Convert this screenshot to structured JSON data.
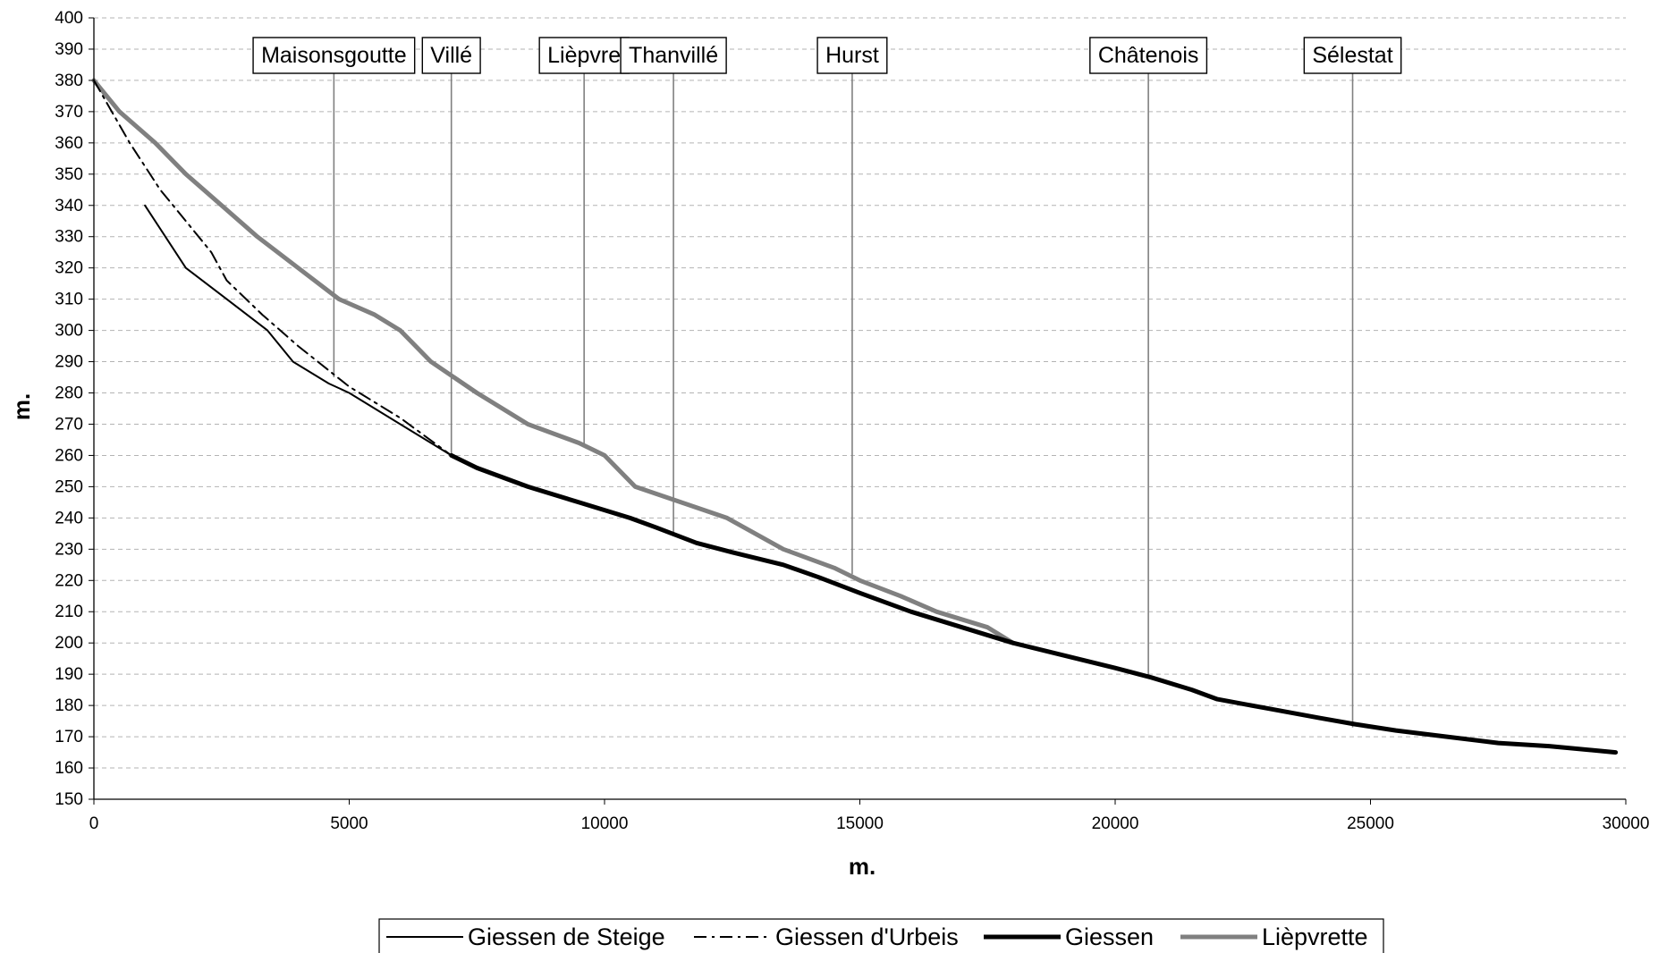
{
  "chart_data": {
    "type": "line",
    "title": "",
    "xlabel": "m.",
    "ylabel": "m.",
    "xlim": [
      0,
      30000
    ],
    "ylim": [
      150,
      400
    ],
    "x_ticks": [
      0,
      5000,
      10000,
      15000,
      20000,
      25000,
      30000
    ],
    "y_ticks": [
      150,
      160,
      170,
      180,
      190,
      200,
      210,
      220,
      230,
      240,
      250,
      260,
      270,
      280,
      290,
      300,
      310,
      320,
      330,
      340,
      350,
      360,
      370,
      380,
      390,
      400
    ],
    "grid": "horizontal dashed",
    "legend_position": "bottom",
    "series": [
      {
        "name": "Giessen de Steige",
        "color": "#000000",
        "style": "solid-thin",
        "points": [
          [
            1000,
            340
          ],
          [
            1800,
            320
          ],
          [
            2600,
            310
          ],
          [
            3400,
            300
          ],
          [
            3900,
            290
          ],
          [
            4600,
            283
          ],
          [
            5000,
            280
          ],
          [
            6000,
            270
          ],
          [
            7000,
            260
          ]
        ]
      },
      {
        "name": "Giessen d'Urbeis",
        "color": "#000000",
        "style": "dash-dot",
        "points": [
          [
            0,
            380
          ],
          [
            700,
            360
          ],
          [
            1300,
            345
          ],
          [
            1800,
            335
          ],
          [
            2300,
            325
          ],
          [
            2600,
            316
          ],
          [
            3300,
            305
          ],
          [
            4000,
            295
          ],
          [
            5000,
            282
          ],
          [
            6000,
            272
          ],
          [
            7000,
            260
          ]
        ]
      },
      {
        "name": "Giessen",
        "color": "#000000",
        "style": "solid-thick",
        "points": [
          [
            7000,
            260
          ],
          [
            7500,
            256
          ],
          [
            8500,
            250
          ],
          [
            9500,
            245
          ],
          [
            10500,
            240
          ],
          [
            11000,
            237
          ],
          [
            11800,
            232
          ],
          [
            12500,
            229
          ],
          [
            13500,
            225
          ],
          [
            14200,
            221
          ],
          [
            15000,
            216
          ],
          [
            16000,
            210
          ],
          [
            17000,
            205
          ],
          [
            18000,
            200
          ],
          [
            19000,
            196
          ],
          [
            20000,
            192
          ],
          [
            20700,
            189
          ],
          [
            21500,
            185
          ],
          [
            22000,
            182
          ],
          [
            23000,
            179
          ],
          [
            24000,
            176
          ],
          [
            24700,
            174
          ],
          [
            25500,
            172
          ],
          [
            26500,
            170
          ],
          [
            27500,
            168
          ],
          [
            28500,
            167
          ],
          [
            29800,
            165
          ]
        ]
      },
      {
        "name": "Lièpvrette",
        "color": "#808080",
        "style": "solid-thick",
        "points": [
          [
            0,
            380
          ],
          [
            500,
            370
          ],
          [
            1200,
            360
          ],
          [
            1800,
            350
          ],
          [
            2500,
            340
          ],
          [
            3200,
            330
          ],
          [
            4000,
            320
          ],
          [
            4800,
            310
          ],
          [
            5500,
            305
          ],
          [
            6000,
            300
          ],
          [
            6600,
            290
          ],
          [
            7500,
            280
          ],
          [
            8500,
            270
          ],
          [
            9500,
            264
          ],
          [
            10000,
            260
          ],
          [
            10600,
            250
          ],
          [
            11500,
            245
          ],
          [
            12400,
            240
          ],
          [
            13500,
            230
          ],
          [
            14500,
            224
          ],
          [
            15000,
            220
          ],
          [
            15800,
            215
          ],
          [
            16500,
            210
          ],
          [
            17500,
            205
          ],
          [
            18000,
            200
          ]
        ]
      }
    ],
    "annotations": [
      {
        "label": "Maisonsgoutte",
        "x": 4700,
        "y_end": 285
      },
      {
        "label": "Villé",
        "x": 7000,
        "y_end": 260
      },
      {
        "label": "Lièpvre",
        "x": 9600,
        "y_end": 263
      },
      {
        "label": "Thanvillé",
        "x": 11350,
        "y_end": 235
      },
      {
        "label": "Hurst",
        "x": 14850,
        "y_end": 222
      },
      {
        "label": "Châtenois",
        "x": 20650,
        "y_end": 189
      },
      {
        "label": "Sélestat",
        "x": 24650,
        "y_end": 173
      }
    ]
  }
}
